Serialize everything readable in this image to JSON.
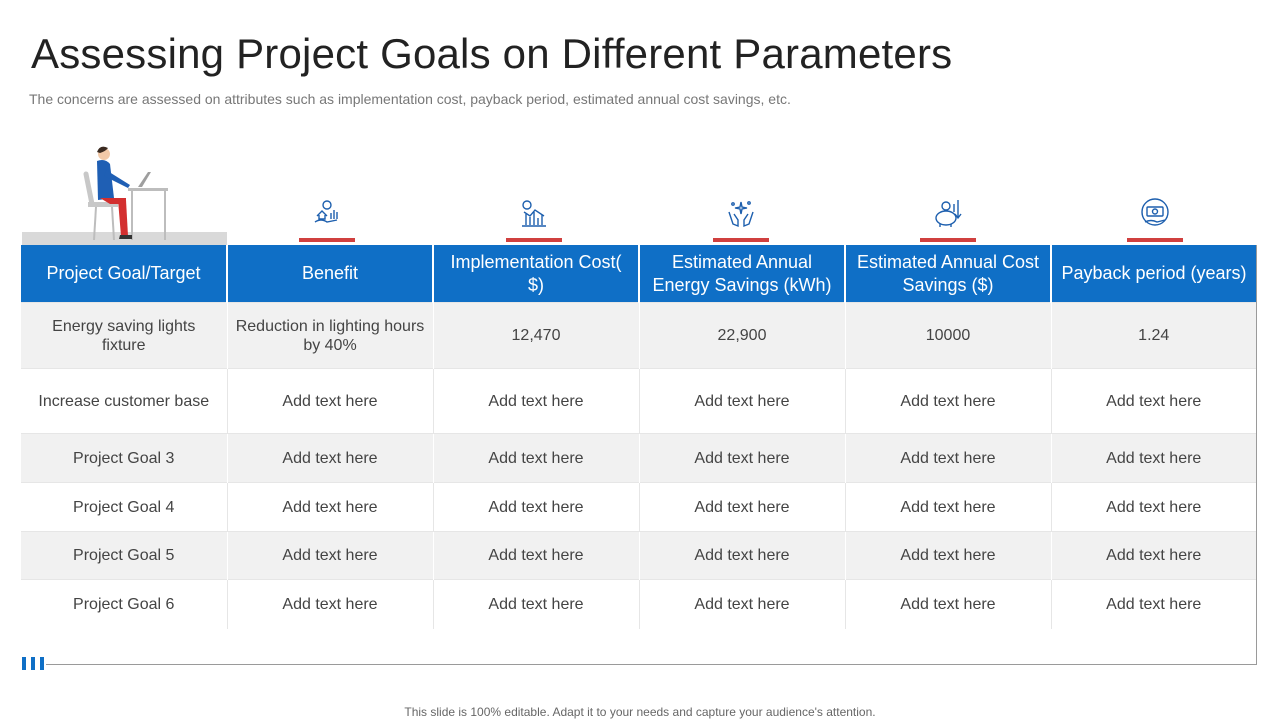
{
  "title": "Assessing Project Goals on Different Parameters",
  "subtitle": "The concerns are assessed on attributes such as implementation cost, payback period, estimated annual cost savings, etc.",
  "colors": {
    "header": "#0f6fc6",
    "accent": "#d0403f",
    "stripe": "#f1f1f1"
  },
  "icons": [
    "person-at-desk-icon",
    "hand-house-dollar-icon",
    "coin-chart-icon",
    "hands-sparkle-icon",
    "piggy-bank-dollar-icon",
    "hand-money-icon"
  ],
  "table": {
    "headers": [
      "Project Goal/Target",
      "Benefit",
      "Implementation Cost( $)",
      "Estimated Annual Energy Savings (kWh)",
      "Estimated Annual Cost Savings ($)",
      "Payback period (years)"
    ],
    "rows": [
      [
        "Energy saving lights fixture",
        "Reduction in lighting hours by 40%",
        "12,470",
        "22,900",
        "10000",
        "1.24"
      ],
      [
        "Increase customer base",
        "Add text here",
        "Add text here",
        "Add text here",
        "Add text here",
        "Add text here"
      ],
      [
        "Project Goal 3",
        "Add text here",
        "Add text here",
        "Add text here",
        "Add text here",
        "Add text here"
      ],
      [
        "Project Goal 4",
        "Add text here",
        "Add text here",
        "Add text here",
        "Add text here",
        "Add text here"
      ],
      [
        "Project Goal 5",
        "Add text here",
        "Add text here",
        "Add text here",
        "Add text here",
        "Add text here"
      ],
      [
        "Project Goal 6",
        "Add text here",
        "Add text here",
        "Add text here",
        "Add text here",
        "Add text here"
      ]
    ]
  },
  "footer": "This slide is 100% editable. Adapt it to your needs and capture your audience's attention."
}
